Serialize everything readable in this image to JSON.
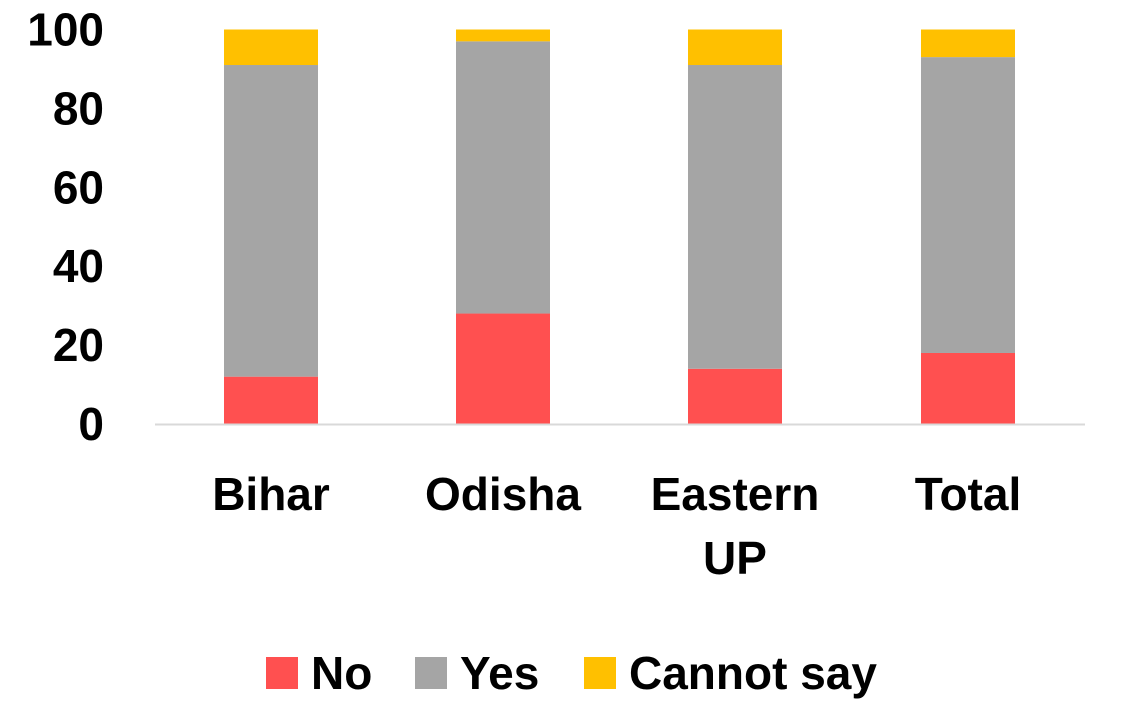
{
  "chart_data": {
    "type": "bar",
    "stacked": true,
    "categories": [
      "Bihar",
      "Odisha",
      "Eastern UP",
      "Total"
    ],
    "series": [
      {
        "name": "No",
        "color": "#FF5050",
        "values": [
          12,
          28,
          14,
          18
        ]
      },
      {
        "name": "Yes",
        "color": "#A5A5A5",
        "values": [
          79,
          69,
          77,
          75
        ]
      },
      {
        "name": "Cannot say",
        "color": "#FFC000",
        "values": [
          9,
          3,
          9,
          7
        ]
      }
    ],
    "title": "",
    "xlabel": "",
    "ylabel": "",
    "ylim": [
      0,
      100
    ],
    "yticks": [
      0,
      20,
      40,
      60,
      80,
      100
    ],
    "grid": false,
    "legend_position": "bottom"
  }
}
